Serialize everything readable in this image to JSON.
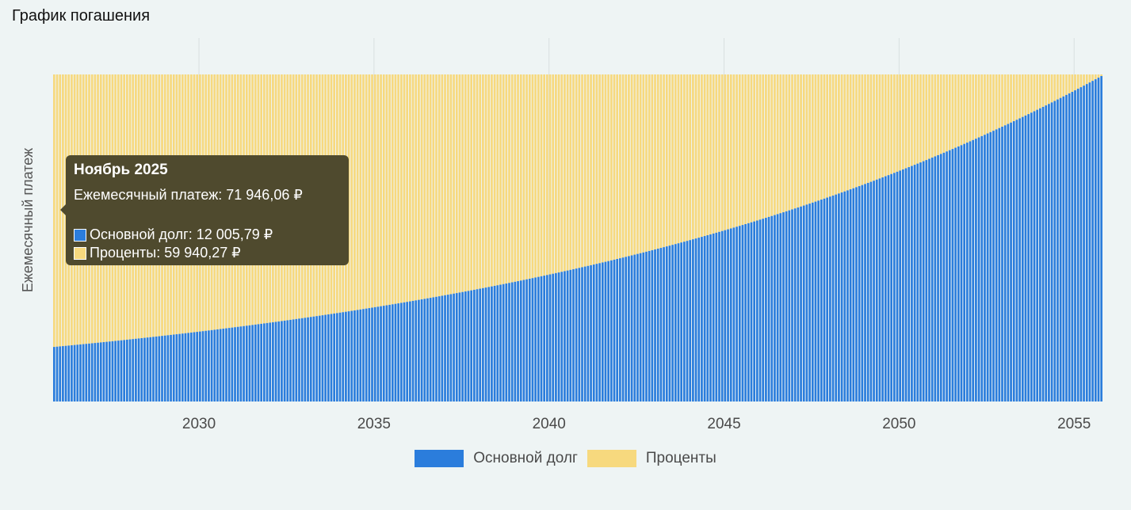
{
  "page_title": "График погашения",
  "colors": {
    "principal": "#2b7ddc",
    "interest": "#f7d97e",
    "grid": "#d8dfe0",
    "background": "#eef4f4"
  },
  "tooltip": {
    "title": "Ноябрь 2025",
    "payment": "Ежемесячный платеж: 71 946,06 ₽",
    "principal": "Основной долг: 12 005,79 ₽",
    "interest": "Проценты: 59 940,27 ₽"
  },
  "legend": [
    {
      "label": "Основной долг",
      "color": "#2b7ddc"
    },
    {
      "label": "Проценты",
      "color": "#f7d97e"
    }
  ],
  "chart_data": {
    "type": "bar",
    "stacked": true,
    "ylabel": "Ежемесячный платеж",
    "xlabel": "",
    "x_range": [
      2025.833,
      2055.833
    ],
    "x_ticks": [
      "2030",
      "2035",
      "2040",
      "2045",
      "2050",
      "2055"
    ],
    "x_tick_values": [
      2030,
      2035,
      2040,
      2045,
      2050,
      2055
    ],
    "months": 360,
    "first_month": "Ноябрь 2025",
    "monthly_payment": 71946.06,
    "first_principal": 12005.79,
    "first_interest": 59940.27,
    "ylim": [
      0,
      71946.06
    ],
    "grid": true,
    "legend_position": "bottom",
    "series": [
      {
        "name": "Основной долг"
      },
      {
        "name": "Проценты"
      }
    ]
  }
}
